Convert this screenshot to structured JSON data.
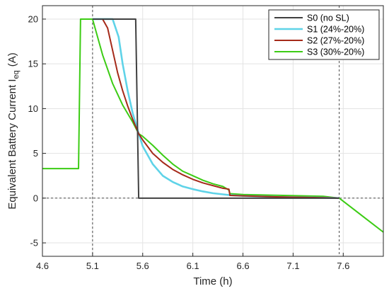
{
  "chart_data": {
    "type": "line",
    "title": "",
    "xlabel": "Time (h)",
    "ylabel_main": "Equivalent Battery Current I",
    "ylabel_sub": "eq",
    "ylabel_unit": "(A)",
    "xlim": [
      4.6,
      8.0
    ],
    "ylim": [
      -6.5,
      21.5
    ],
    "xticks": [
      4.6,
      5.1,
      5.6,
      6.1,
      6.6,
      7.1,
      7.6
    ],
    "xtick_labels": [
      "4.6",
      "5.1",
      "5.6",
      "6.1",
      "6.6",
      "7.1",
      "7.6"
    ],
    "yticks": [
      -5,
      0,
      5,
      10,
      15,
      20
    ],
    "ytick_labels": [
      "-5",
      "0",
      "5",
      "10",
      "15",
      "20"
    ],
    "grid": true,
    "legend_position": "top-right",
    "vertical_refs": [
      5.1,
      7.56
    ],
    "horizontal_ref": 0,
    "series": [
      {
        "name": "S0 (no SL)",
        "color": "#404040",
        "points": [
          [
            5.1,
            20
          ],
          [
            5.53,
            20
          ],
          [
            5.56,
            0
          ],
          [
            7.56,
            0
          ]
        ]
      },
      {
        "name": "S1 (24%-20%)",
        "color": "#5fd3e8",
        "points": [
          [
            5.1,
            20
          ],
          [
            5.3,
            20
          ],
          [
            5.36,
            18.0
          ],
          [
            5.4,
            15.0
          ],
          [
            5.45,
            12.0
          ],
          [
            5.5,
            9.5
          ],
          [
            5.56,
            7.2
          ],
          [
            5.6,
            5.8
          ],
          [
            5.7,
            3.8
          ],
          [
            5.8,
            2.5
          ],
          [
            5.9,
            1.8
          ],
          [
            6.0,
            1.3
          ],
          [
            6.1,
            1.0
          ],
          [
            6.2,
            0.75
          ],
          [
            6.3,
            0.55
          ],
          [
            6.4,
            0.42
          ],
          [
            6.46,
            0.35
          ],
          [
            6.6,
            0.25
          ],
          [
            7.0,
            0.12
          ],
          [
            7.4,
            0.05
          ],
          [
            7.56,
            0
          ]
        ]
      },
      {
        "name": "S2 (27%-20%)",
        "color": "#a52a1a",
        "points": [
          [
            5.1,
            20
          ],
          [
            5.2,
            20
          ],
          [
            5.25,
            19.0
          ],
          [
            5.3,
            16.5
          ],
          [
            5.35,
            14.0
          ],
          [
            5.4,
            12.0
          ],
          [
            5.45,
            10.3
          ],
          [
            5.5,
            8.8
          ],
          [
            5.56,
            7.2
          ],
          [
            5.6,
            6.5
          ],
          [
            5.7,
            5.0
          ],
          [
            5.8,
            4.0
          ],
          [
            5.9,
            3.2
          ],
          [
            6.0,
            2.6
          ],
          [
            6.1,
            2.1
          ],
          [
            6.2,
            1.7
          ],
          [
            6.3,
            1.4
          ],
          [
            6.4,
            1.1
          ],
          [
            6.46,
            1.0
          ],
          [
            6.47,
            0.3
          ],
          [
            6.6,
            0.25
          ],
          [
            7.0,
            0.12
          ],
          [
            7.4,
            0.05
          ],
          [
            7.56,
            0
          ]
        ]
      },
      {
        "name": "S3 (30%-20%)",
        "color": "#3ccc14",
        "points": [
          [
            4.6,
            3.3
          ],
          [
            4.96,
            3.3
          ],
          [
            4.98,
            20
          ],
          [
            5.1,
            20
          ],
          [
            5.2,
            16.0
          ],
          [
            5.3,
            12.8
          ],
          [
            5.4,
            10.4
          ],
          [
            5.5,
            8.5
          ],
          [
            5.56,
            7.2
          ],
          [
            5.6,
            6.9
          ],
          [
            5.7,
            5.9
          ],
          [
            5.8,
            4.8
          ],
          [
            5.9,
            3.8
          ],
          [
            6.0,
            3.0
          ],
          [
            6.1,
            2.5
          ],
          [
            6.2,
            2.0
          ],
          [
            6.3,
            1.6
          ],
          [
            6.4,
            1.3
          ],
          [
            6.46,
            0.9
          ],
          [
            6.47,
            0.5
          ],
          [
            6.6,
            0.4
          ],
          [
            7.0,
            0.3
          ],
          [
            7.4,
            0.2
          ],
          [
            7.56,
            0
          ],
          [
            8.0,
            -3.8
          ]
        ]
      }
    ]
  }
}
